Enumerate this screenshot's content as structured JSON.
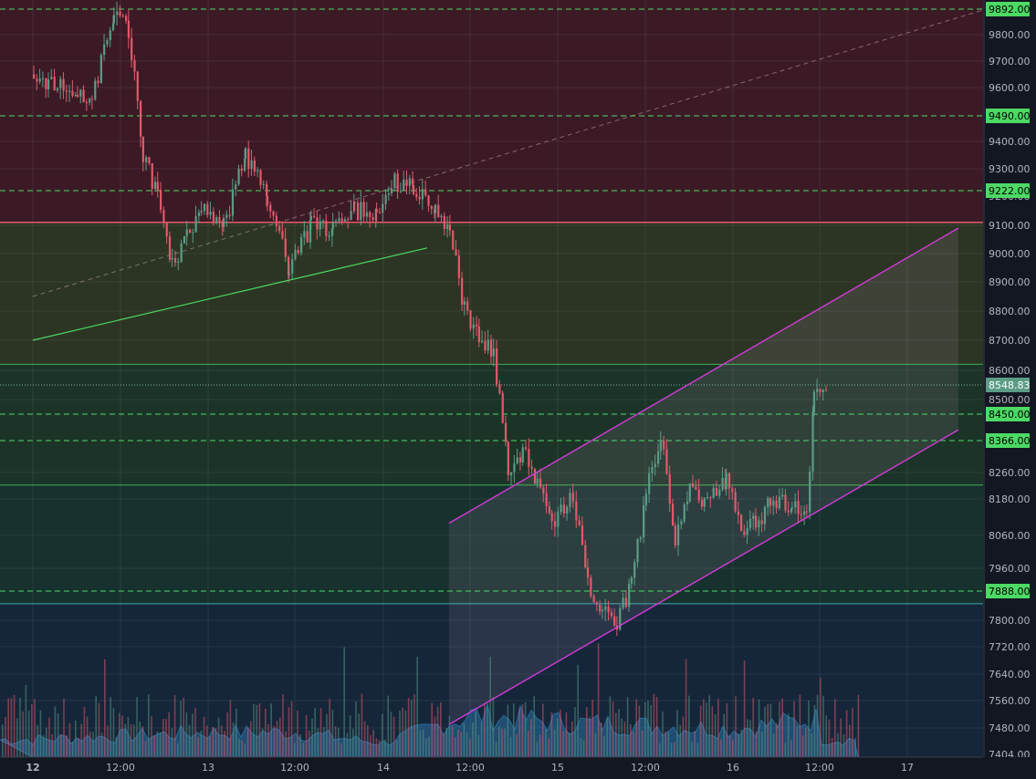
{
  "colors": {
    "background": "#131722",
    "grid": "#2a2e39",
    "up": "#5b9c86",
    "down": "#e2596a",
    "volume_area": "#2f7fb6",
    "level_line": "#4cd964",
    "level_label_bg": "#4cd964",
    "channel": "#d53ad8",
    "trendline": "#4cd964",
    "last_price": "#5b9c86",
    "cyan_line": "#4fd1d9"
  },
  "axes": {
    "price_ticks": [
      "9800.00",
      "9700.00",
      "9600.00",
      "9400.00",
      "9300.00",
      "9200.00",
      "9100.00",
      "9000.00",
      "8900.00",
      "8800.00",
      "8700.00",
      "8600.00",
      "8500.00",
      "8260.00",
      "8180.00",
      "8060.00",
      "7960.00",
      "7800.00",
      "7720.00",
      "7640.00",
      "7560.00",
      "7480.00",
      "7404.00"
    ],
    "time_ticks": [
      "12",
      "12:00",
      "13",
      "12:00",
      "14",
      "12:00",
      "15",
      "12:00",
      "16",
      "12:00",
      "17"
    ]
  },
  "levels": {
    "labels": [
      "9892.00",
      "9490.00",
      "9222.00",
      "8450.00",
      "8366.00",
      "7888.00"
    ],
    "last_price": "8548.83"
  },
  "chart_data": {
    "type": "candlestick",
    "title": "",
    "xlabel": "",
    "ylabel": "",
    "ylim": [
      7404,
      9920
    ],
    "scale": "nonlinear",
    "x_range": [
      "12 00:00",
      "17 12:00"
    ],
    "grid": true,
    "horizontal_levels": [
      9892,
      9490,
      9222,
      8450,
      8366,
      7888
    ],
    "support_resistance": [
      8620,
      8222,
      7850
    ],
    "zones": [
      {
        "from": 9920,
        "to": 9110,
        "color": "#3b1a26"
      },
      {
        "from": 9110,
        "to": 8620,
        "color": "#2c3524"
      },
      {
        "from": 8620,
        "to": 8222,
        "color": "#1c3428"
      },
      {
        "from": 8222,
        "to": 7850,
        "color": "#17312f"
      },
      {
        "from": 7850,
        "to": 7404,
        "color": "#15263a"
      }
    ],
    "close_path": [
      [
        "12 00:00",
        9650
      ],
      [
        "12 02:00",
        9620
      ],
      [
        "12 06:00",
        9580
      ],
      [
        "12 08:00",
        9560
      ],
      [
        "12 11:00",
        9860
      ],
      [
        "12 13:00",
        9820
      ],
      [
        "12 15:00",
        9350
      ],
      [
        "12 17:00",
        9200
      ],
      [
        "12 19:00",
        8950
      ],
      [
        "12 21:00",
        9080
      ],
      [
        "12 23:00",
        9150
      ],
      [
        "13 02:00",
        9100
      ],
      [
        "13 05:00",
        9350
      ],
      [
        "13 08:00",
        9200
      ],
      [
        "13 11:00",
        8950
      ],
      [
        "13 14:00",
        9100
      ],
      [
        "13 17:00",
        9080
      ],
      [
        "13 20:00",
        9150
      ],
      [
        "13 23:00",
        9150
      ],
      [
        "14 01:00",
        9250
      ],
      [
        "14 04:00",
        9230
      ],
      [
        "14 07:00",
        9150
      ],
      [
        "14 09:00",
        9080
      ],
      [
        "14 11:00",
        8800
      ],
      [
        "14 13:00",
        8720
      ],
      [
        "14 15:00",
        8650
      ],
      [
        "14 17:00",
        8280
      ],
      [
        "14 19:00",
        8330
      ],
      [
        "14 21:00",
        8230
      ],
      [
        "14 23:00",
        8080
      ],
      [
        "15 02:00",
        8200
      ],
      [
        "15 04:00",
        7900
      ],
      [
        "15 06:00",
        7820
      ],
      [
        "15 08:00",
        7800
      ],
      [
        "15 10:00",
        7900
      ],
      [
        "15 12:00",
        8200
      ],
      [
        "15 14:00",
        8380
      ],
      [
        "15 16:00",
        8030
      ],
      [
        "15 18:00",
        8200
      ],
      [
        "15 20:00",
        8180
      ],
      [
        "15 23:00",
        8240
      ],
      [
        "16 01:00",
        8060
      ],
      [
        "16 03:00",
        8100
      ],
      [
        "16 05:00",
        8160
      ],
      [
        "16 08:00",
        8170
      ],
      [
        "16 10:00",
        8120
      ],
      [
        "16 11:00",
        8520
      ],
      [
        "16 13:00",
        8548.83
      ]
    ],
    "volume_path": [
      [
        "12 00:00",
        0.25
      ],
      [
        "12 12:00",
        0.3
      ],
      [
        "13 00:00",
        0.35
      ],
      [
        "13 12:00",
        0.35
      ],
      [
        "14 00:00",
        0.2
      ],
      [
        "14 12:00",
        0.6
      ],
      [
        "15 00:00",
        0.5
      ],
      [
        "15 12:00",
        0.45
      ],
      [
        "16 00:00",
        0.4
      ],
      [
        "16 12:00",
        0.55
      ]
    ],
    "trendline": [
      [
        "12 00:00",
        8700
      ],
      [
        "14 06:00",
        9020
      ]
    ],
    "dashed_trendline": [
      [
        "12 00:00",
        8850
      ],
      [
        "17 12:00",
        9900
      ]
    ],
    "channel": {
      "upper": [
        [
          "14 09:00",
          8100
        ],
        [
          "17 07:00",
          9090
        ]
      ],
      "lower": [
        [
          "14 09:00",
          7490
        ],
        [
          "17 07:00",
          8400
        ]
      ]
    }
  }
}
